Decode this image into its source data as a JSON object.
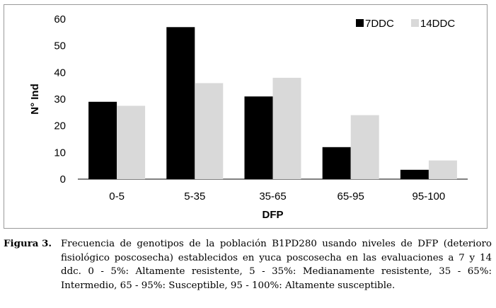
{
  "chart_data": {
    "type": "bar",
    "categories": [
      "0-5",
      "5-35",
      "35-65",
      "65-95",
      "95-100"
    ],
    "series": [
      {
        "name": "7DDC",
        "color": "#000000",
        "values": [
          29,
          57,
          31,
          12,
          3.5
        ]
      },
      {
        "name": "14DDC",
        "color": "#d9d9d9",
        "values": [
          27.5,
          36,
          38,
          24,
          7
        ]
      }
    ],
    "xlabel": "DFP",
    "ylabel": "N° Ind",
    "ylim": [
      0,
      60
    ],
    "yticks": [
      "0",
      "10",
      "20",
      "30",
      "40",
      "50",
      "60"
    ],
    "grid": false,
    "legend_position": "top-right"
  },
  "caption": {
    "label": "Figura 3.",
    "text": "Frecuencia de genotipos de la población B1PD280 usando niveles de DFP (deterioro fisiológico poscosecha) establecidos en yuca poscosecha en las evaluaciones a 7 y 14 ddc. 0 - 5%: Altamente resistente, 5 - 35%: Medianamente resistente, 35 - 65%: Intermedio, 65 - 95%: Susceptible, 95 - 100%: Altamente susceptible."
  }
}
